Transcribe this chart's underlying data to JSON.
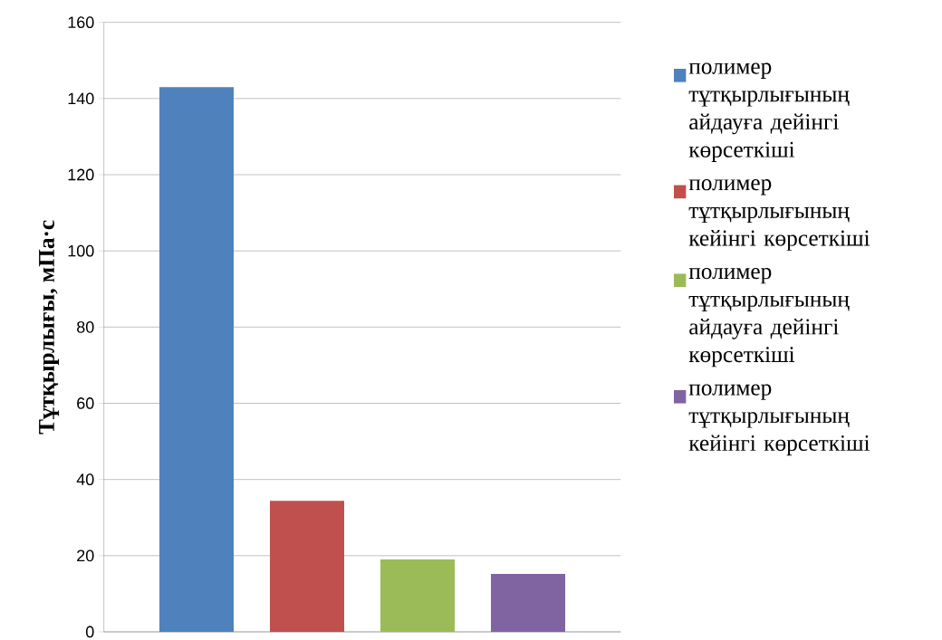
{
  "chart_data": {
    "type": "bar",
    "ylabel": "Тұтқырлығы, мПа·с",
    "categories": [
      null
    ],
    "series": [
      {
        "name": "полимер тұтқырлығының айдауға дейінгі көрсеткіші",
        "color": "#4f81bd",
        "values": [
          143
        ]
      },
      {
        "name": "полимер тұтқырлығының кейінгі көрсеткіші",
        "color": "#c0504d",
        "values": [
          34.4
        ]
      },
      {
        "name": "полимер тұтқырлығының айдауға дейінгі көрсеткіші",
        "color": "#9bbb59",
        "values": [
          19
        ]
      },
      {
        "name": "полимер тұтқырлығының кейінгі көрсеткіші",
        "color": "#8064a2",
        "values": [
          15.2
        ]
      }
    ],
    "ylim": [
      0,
      160
    ],
    "yticks": [
      0,
      20,
      40,
      60,
      80,
      100,
      120,
      140,
      160
    ],
    "grid": "y",
    "legend": "right"
  }
}
